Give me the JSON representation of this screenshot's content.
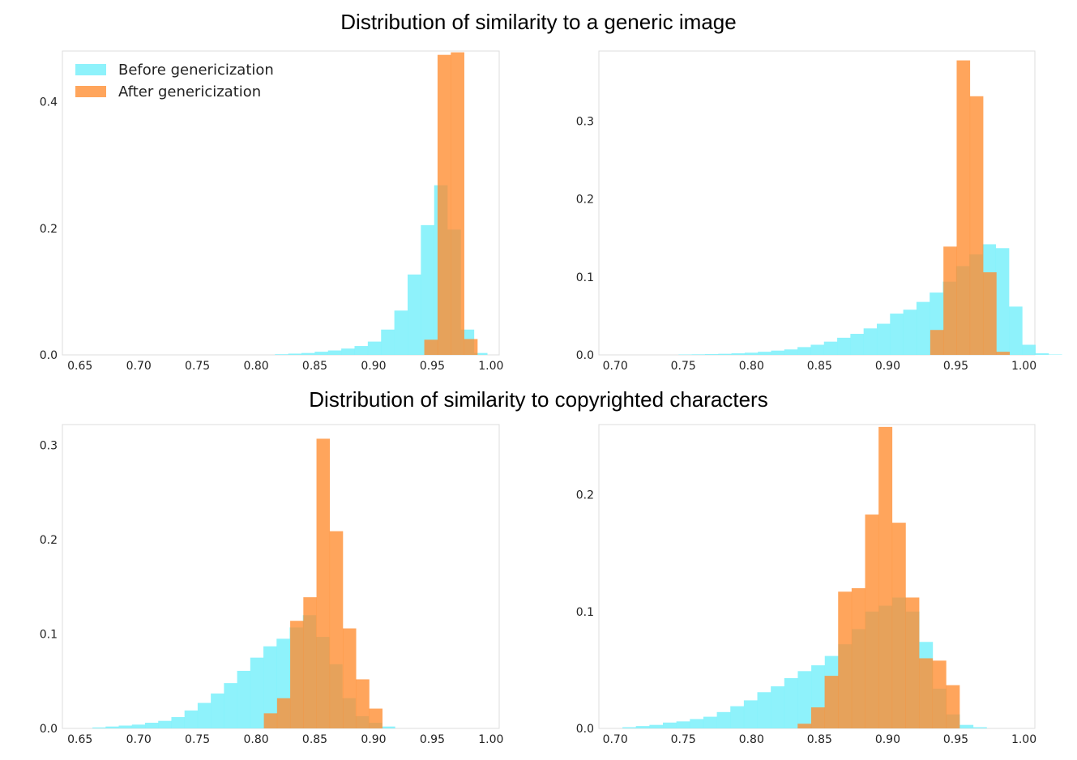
{
  "titles": {
    "top": "Distribution of similarity to a generic image",
    "bottom": "Distribution of similarity to copyrighted characters"
  },
  "legend": {
    "location": "upper-left",
    "entries": [
      {
        "label": "Before genericization",
        "color": "#7af0fa"
      },
      {
        "label": "After genericization",
        "color": "#ff8c2e"
      }
    ]
  },
  "chart_data": [
    {
      "type": "bar",
      "panel": "top-left",
      "legend": true,
      "xlim": [
        0.635,
        1.007
      ],
      "ylim": [
        0,
        0.48
      ],
      "xticks": [
        0.65,
        0.7,
        0.75,
        0.8,
        0.85,
        0.9,
        0.95,
        1.0
      ],
      "xtick_labels": [
        "0.65",
        "0.70",
        "0.75",
        "0.80",
        "0.85",
        "0.90",
        "0.95",
        "1.00"
      ],
      "yticks": [
        0,
        0.2,
        0.4
      ],
      "ytick_labels": [
        "0.0",
        "0.2",
        "0.4"
      ],
      "series": [
        {
          "name": "Before genericization",
          "bin_start": 0.816,
          "bin_width": 0.0113,
          "values": [
            0.001,
            0.002,
            0.003,
            0.005,
            0.007,
            0.01,
            0.014,
            0.021,
            0.04,
            0.07,
            0.127,
            0.205,
            0.268,
            0.198,
            0.04,
            0.003
          ]
        },
        {
          "name": "After genericization",
          "bin_start": 0.9432,
          "bin_width": 0.0113,
          "values": [
            0.024,
            0.474,
            0.478,
            0.025
          ]
        }
      ]
    },
    {
      "type": "bar",
      "panel": "top-right",
      "legend": false,
      "xlim": [
        0.688,
        1.008
      ],
      "ylim": [
        0,
        0.39
      ],
      "xticks": [
        0.7,
        0.75,
        0.8,
        0.85,
        0.9,
        0.95,
        1.0
      ],
      "xtick_labels": [
        "0.70",
        "0.75",
        "0.80",
        "0.85",
        "0.90",
        "0.95",
        "1.00"
      ],
      "yticks": [
        0,
        0.1,
        0.2,
        0.3
      ],
      "ytick_labels": [
        "0.0",
        "0.1",
        "0.2",
        "0.3"
      ],
      "series": [
        {
          "name": "Before genericization",
          "bin_start": 0.7465,
          "bin_width": 0.0097,
          "values": [
            0.0005,
            0.0007,
            0.001,
            0.0014,
            0.002,
            0.0028,
            0.004,
            0.0055,
            0.007,
            0.01,
            0.013,
            0.017,
            0.022,
            0.027,
            0.034,
            0.04,
            0.053,
            0.058,
            0.068,
            0.08,
            0.094,
            0.114,
            0.129,
            0.142,
            0.137,
            0.062,
            0.013,
            0.002,
            0.0005
          ]
        },
        {
          "name": "After genericization",
          "bin_start": 0.9312,
          "bin_width": 0.0097,
          "values": [
            0.032,
            0.139,
            0.378,
            0.332,
            0.106,
            0.004
          ]
        }
      ]
    },
    {
      "type": "bar",
      "panel": "bottom-left",
      "legend": false,
      "xlim": [
        0.635,
        1.007
      ],
      "ylim": [
        0,
        0.322
      ],
      "xticks": [
        0.65,
        0.7,
        0.75,
        0.8,
        0.85,
        0.9,
        0.95,
        1.0
      ],
      "xtick_labels": [
        "0.65",
        "0.70",
        "0.75",
        "0.80",
        "0.85",
        "0.90",
        "0.95",
        "1.00"
      ],
      "yticks": [
        0,
        0.1,
        0.2,
        0.3
      ],
      "ytick_labels": [
        "0.0",
        "0.1",
        "0.2",
        "0.3"
      ],
      "series": [
        {
          "name": "Before genericization",
          "bin_start": 0.6606,
          "bin_width": 0.0112,
          "values": [
            0.001,
            0.002,
            0.003,
            0.004,
            0.006,
            0.008,
            0.012,
            0.019,
            0.027,
            0.037,
            0.048,
            0.061,
            0.075,
            0.087,
            0.095,
            0.107,
            0.12,
            0.097,
            0.068,
            0.032,
            0.013,
            0.006,
            0.002
          ]
        },
        {
          "name": "After genericization",
          "bin_start": 0.8066,
          "bin_width": 0.0112,
          "values": [
            0.016,
            0.032,
            0.114,
            0.139,
            0.307,
            0.209,
            0.106,
            0.052,
            0.021
          ]
        }
      ]
    },
    {
      "type": "bar",
      "panel": "bottom-right",
      "legend": false,
      "xlim": [
        0.688,
        1.008
      ],
      "ylim": [
        0,
        0.26
      ],
      "xticks": [
        0.7,
        0.75,
        0.8,
        0.85,
        0.9,
        0.95,
        1.0
      ],
      "xtick_labels": [
        "0.70",
        "0.75",
        "0.80",
        "0.85",
        "0.90",
        "0.95",
        "1.00"
      ],
      "yticks": [
        0,
        0.1,
        0.2
      ],
      "ytick_labels": [
        "0.0",
        "0.1",
        "0.2"
      ],
      "series": [
        {
          "name": "Before genericization",
          "bin_start": 0.7053,
          "bin_width": 0.0099,
          "values": [
            0.001,
            0.002,
            0.003,
            0.005,
            0.006,
            0.008,
            0.01,
            0.014,
            0.019,
            0.024,
            0.031,
            0.036,
            0.043,
            0.049,
            0.054,
            0.062,
            0.072,
            0.085,
            0.1,
            0.105,
            0.112,
            0.1,
            0.074,
            0.034,
            0.012,
            0.003,
            0.001
          ]
        },
        {
          "name": "After genericization",
          "bin_start": 0.8339,
          "bin_width": 0.0099,
          "values": [
            0.004,
            0.018,
            0.045,
            0.117,
            0.12,
            0.183,
            0.258,
            0.176,
            0.112,
            0.06,
            0.058,
            0.037
          ]
        }
      ]
    }
  ]
}
